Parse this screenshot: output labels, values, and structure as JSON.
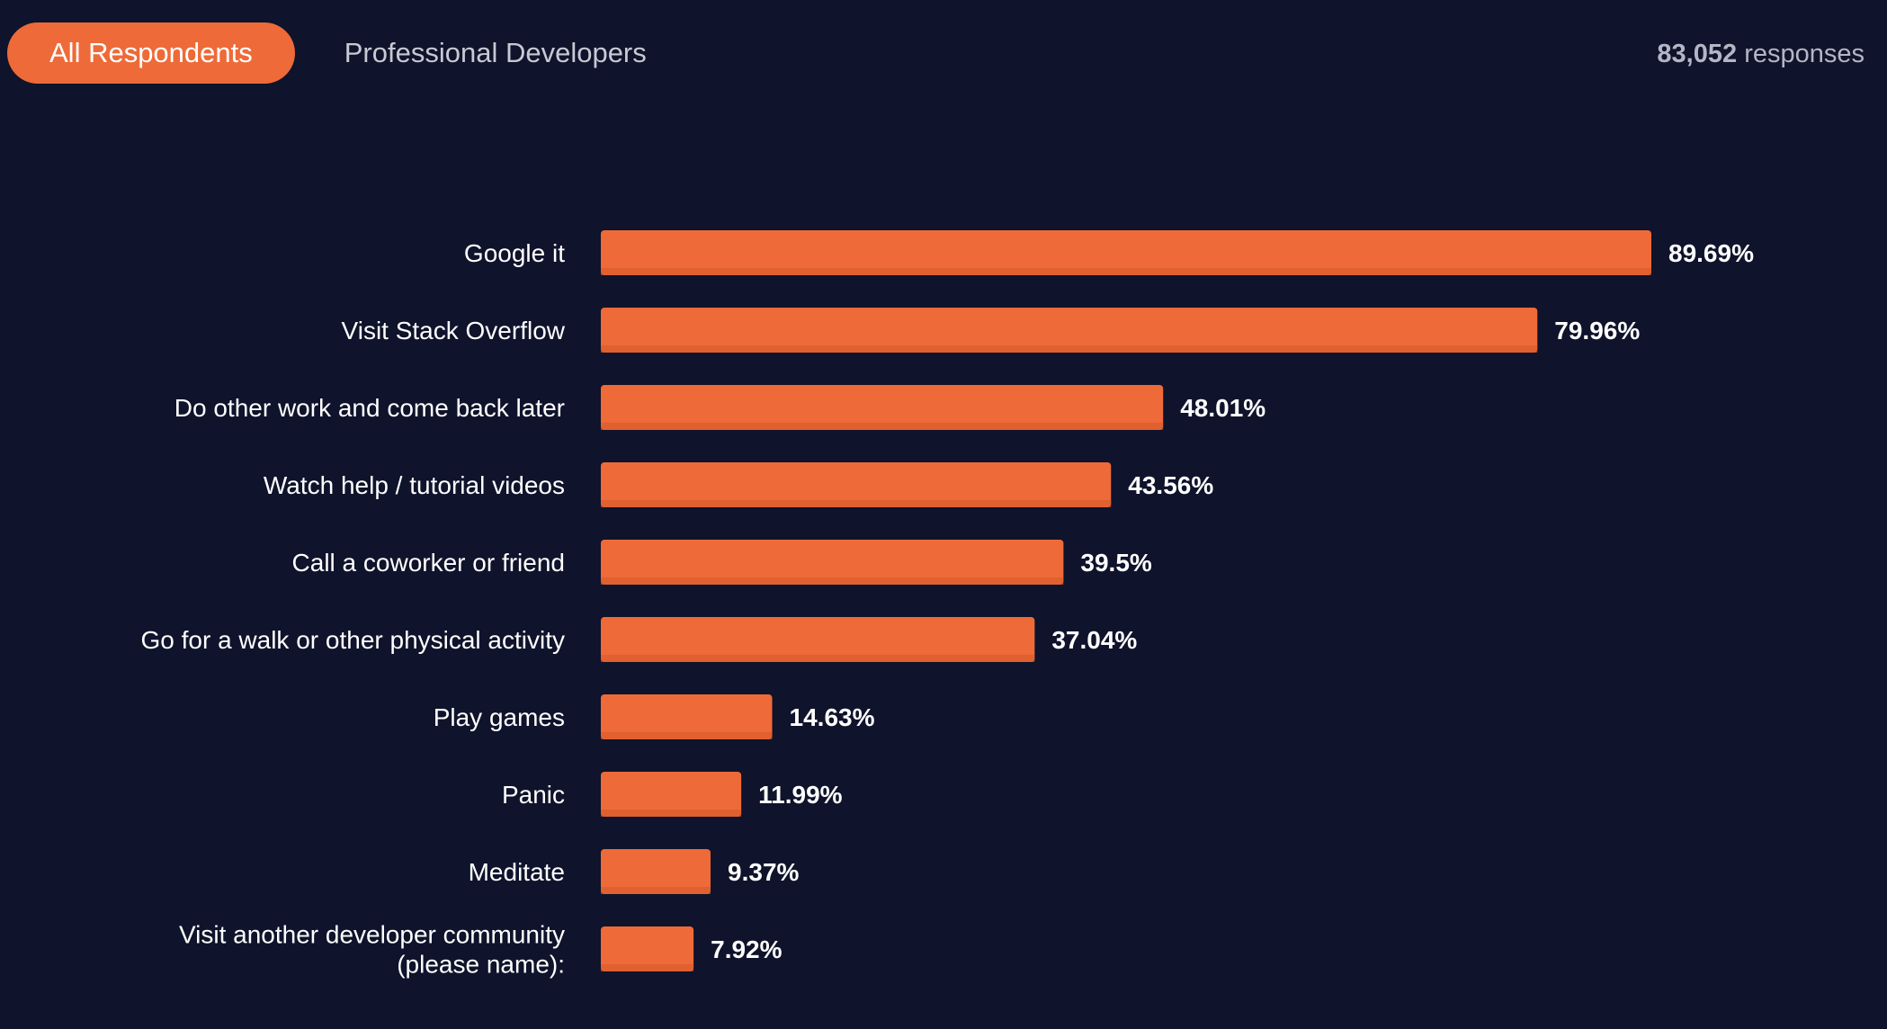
{
  "tabs": {
    "all_respondents": "All Respondents",
    "professional_developers": "Professional Developers"
  },
  "responses": {
    "count": "83,052",
    "label": "responses"
  },
  "colors": {
    "background": "#0f132b",
    "accent": "#ee6a38"
  },
  "chart_data": {
    "type": "bar",
    "orientation": "horizontal",
    "title": "",
    "xlabel": "",
    "ylabel": "",
    "xlim": [
      0,
      100
    ],
    "grid": false,
    "categories": [
      [
        "Google it"
      ],
      [
        "Visit Stack Overflow"
      ],
      [
        "Do other work and come back later"
      ],
      [
        "Watch help / tutorial videos"
      ],
      [
        "Call a coworker or friend"
      ],
      [
        "Go for a walk or other physical activity"
      ],
      [
        "Play games"
      ],
      [
        "Panic"
      ],
      [
        "Meditate"
      ],
      [
        "Visit another developer community",
        "(please name):"
      ]
    ],
    "values": [
      89.69,
      79.96,
      48.01,
      43.56,
      39.5,
      37.04,
      14.63,
      11.99,
      9.37,
      7.92
    ],
    "value_labels": [
      "89.69%",
      "79.96%",
      "48.01%",
      "43.56%",
      "39.5%",
      "37.04%",
      "14.63%",
      "11.99%",
      "9.37%",
      "7.92%"
    ]
  }
}
